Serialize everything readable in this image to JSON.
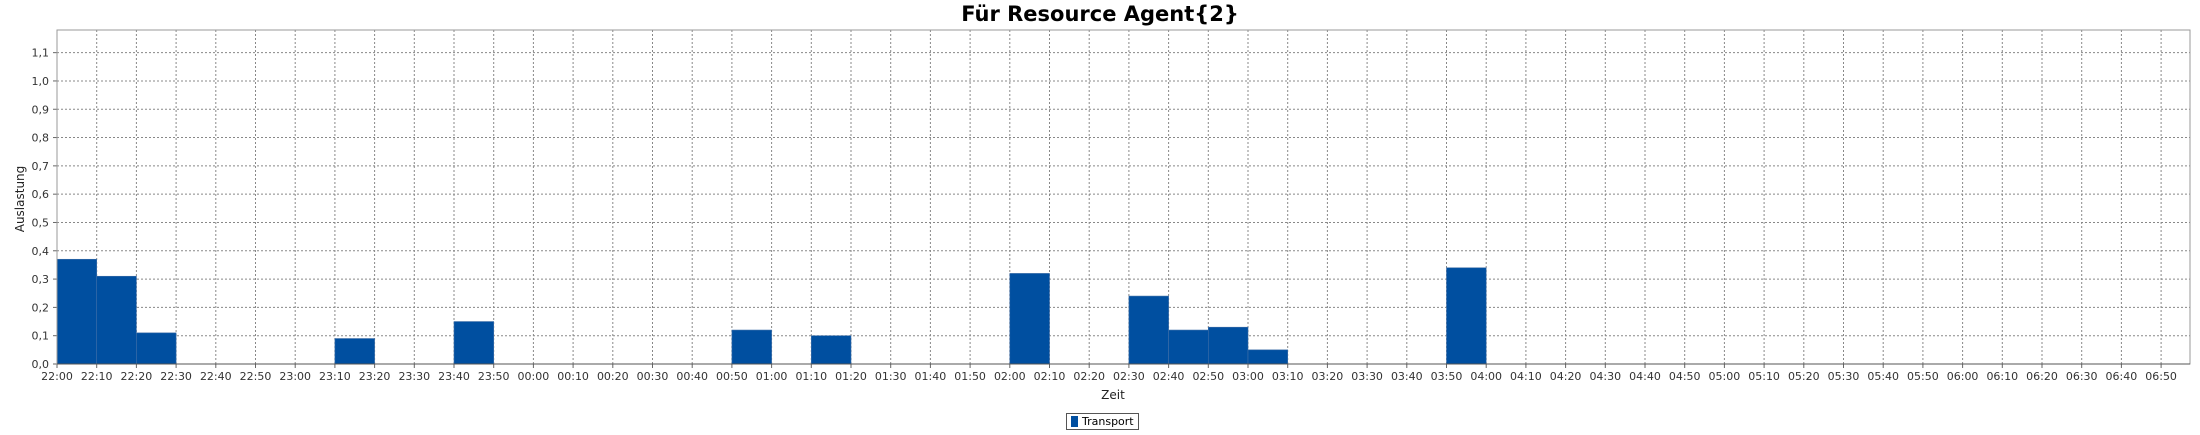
{
  "chart_data": {
    "type": "bar",
    "title": "Für Resource Agent{2}",
    "xlabel": "Zeit",
    "ylabel": "Auslastung",
    "ylim": [
      0,
      1.18
    ],
    "yticks": [
      "0,0",
      "0,1",
      "0,2",
      "0,3",
      "0,4",
      "0,5",
      "0,6",
      "0,7",
      "0,8",
      "0,9",
      "1,0",
      "1,1"
    ],
    "grid": true,
    "legend_position": "bottom",
    "series": [
      {
        "name": "Transport",
        "color": "#004fa0",
        "values": [
          {
            "start": "22:00",
            "end": "22:10",
            "value": 0.37
          },
          {
            "start": "22:10",
            "end": "22:20",
            "value": 0.31
          },
          {
            "start": "22:20",
            "end": "22:30",
            "value": 0.11
          },
          {
            "start": "23:10",
            "end": "23:20",
            "value": 0.09
          },
          {
            "start": "23:40",
            "end": "23:50",
            "value": 0.15
          },
          {
            "start": "00:50",
            "end": "01:00",
            "value": 0.12
          },
          {
            "start": "01:10",
            "end": "01:20",
            "value": 0.1
          },
          {
            "start": "02:00",
            "end": "02:10",
            "value": 0.32
          },
          {
            "start": "02:30",
            "end": "02:40",
            "value": 0.24
          },
          {
            "start": "02:40",
            "end": "02:50",
            "value": 0.12
          },
          {
            "start": "02:50",
            "end": "03:00",
            "value": 0.13
          },
          {
            "start": "03:00",
            "end": "03:10",
            "value": 0.05
          },
          {
            "start": "03:50",
            "end": "04:00",
            "value": 0.34
          }
        ]
      }
    ],
    "xticks": [
      "22:00",
      "22:10",
      "22:20",
      "22:30",
      "22:40",
      "22:50",
      "23:00",
      "23:10",
      "23:20",
      "23:30",
      "23:40",
      "23:50",
      "00:00",
      "00:10",
      "00:20",
      "00:30",
      "00:40",
      "00:50",
      "01:00",
      "01:10",
      "01:20",
      "01:30",
      "01:40",
      "01:50",
      "02:00",
      "02:10",
      "02:20",
      "02:30",
      "02:40",
      "02:50",
      "03:00",
      "03:10",
      "03:20",
      "03:30",
      "03:40",
      "03:50",
      "04:00",
      "04:10",
      "04:20",
      "04:30",
      "04:40",
      "04:50",
      "05:00",
      "05:10",
      "05:20",
      "05:30",
      "05:40",
      "05:50",
      "06:00",
      "06:10",
      "06:20",
      "06:30",
      "06:40",
      "06:50"
    ],
    "x_range": [
      "22:00",
      "06:59"
    ]
  }
}
